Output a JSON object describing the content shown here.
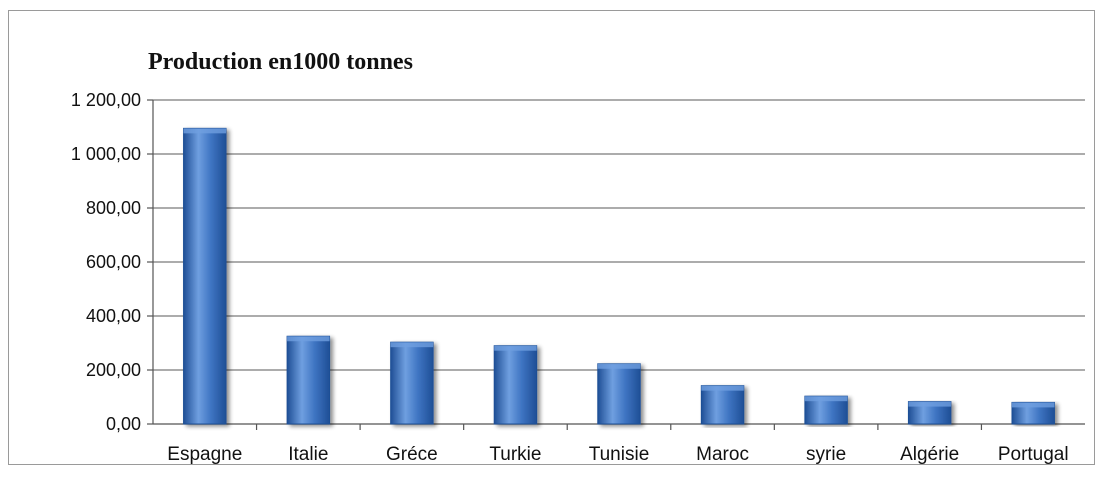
{
  "chart_data": {
    "type": "bar",
    "title": "Production en1000 tonnes",
    "xlabel": "",
    "ylabel": "",
    "categories": [
      "Espagne",
      "Italie",
      "Gréce",
      "Turkie",
      "Tunisie",
      "Maroc",
      "syrie",
      "Algérie",
      "Portugal"
    ],
    "values": [
      1095,
      325,
      303,
      290,
      223,
      142,
      103,
      83,
      80
    ],
    "ylim": [
      0,
      1200
    ],
    "yticks": [
      0,
      200,
      400,
      600,
      800,
      1000,
      1200
    ],
    "ytick_labels": [
      "0,00",
      "200,00",
      "400,00",
      "600,00",
      "800,00",
      "1 000,00",
      "1 200,00"
    ],
    "grid": true,
    "legend": "none",
    "colors": {
      "bar": "#3e74c2",
      "bar_dark": "#1f4f96",
      "bar_light": "#6f9fe0",
      "grid": "#7a7a7a"
    }
  }
}
